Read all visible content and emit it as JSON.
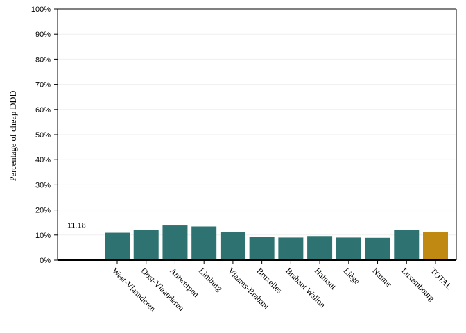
{
  "chart_data": {
    "type": "bar",
    "title": "",
    "xlabel": "",
    "ylabel": "Percentage of cheap DDD",
    "categories": [
      "West-Vlaanderen",
      "Oost-Vlaanderen",
      "Antwerpen",
      "Limburg",
      "Vlaams-Brabant",
      "Bruxelles",
      "Brabant Wallon",
      "Hainaut",
      "Liège",
      "Namur",
      "Luxembourg",
      "TOTAL"
    ],
    "values": [
      10.9,
      12.0,
      13.8,
      13.4,
      11.2,
      9.3,
      9.0,
      9.6,
      9.0,
      8.9,
      12.0,
      11.2
    ],
    "ylim": [
      0,
      100
    ],
    "yticks": [
      0,
      10,
      20,
      30,
      40,
      50,
      60,
      70,
      80,
      90,
      100
    ],
    "ytick_labels": [
      "0%",
      "10%",
      "20%",
      "30%",
      "40%",
      "50%",
      "60%",
      "70%",
      "80%",
      "90%",
      "100%"
    ],
    "reference_line": {
      "value": 11.18,
      "label": "11.18",
      "style": "dashed",
      "color": "#e8a33d"
    },
    "colors": {
      "bar": "#2e7372",
      "highlight_bar": "#c08a12",
      "grid": "#efefef"
    },
    "highlight_category": "TOTAL",
    "grid": true,
    "legend": "none"
  }
}
